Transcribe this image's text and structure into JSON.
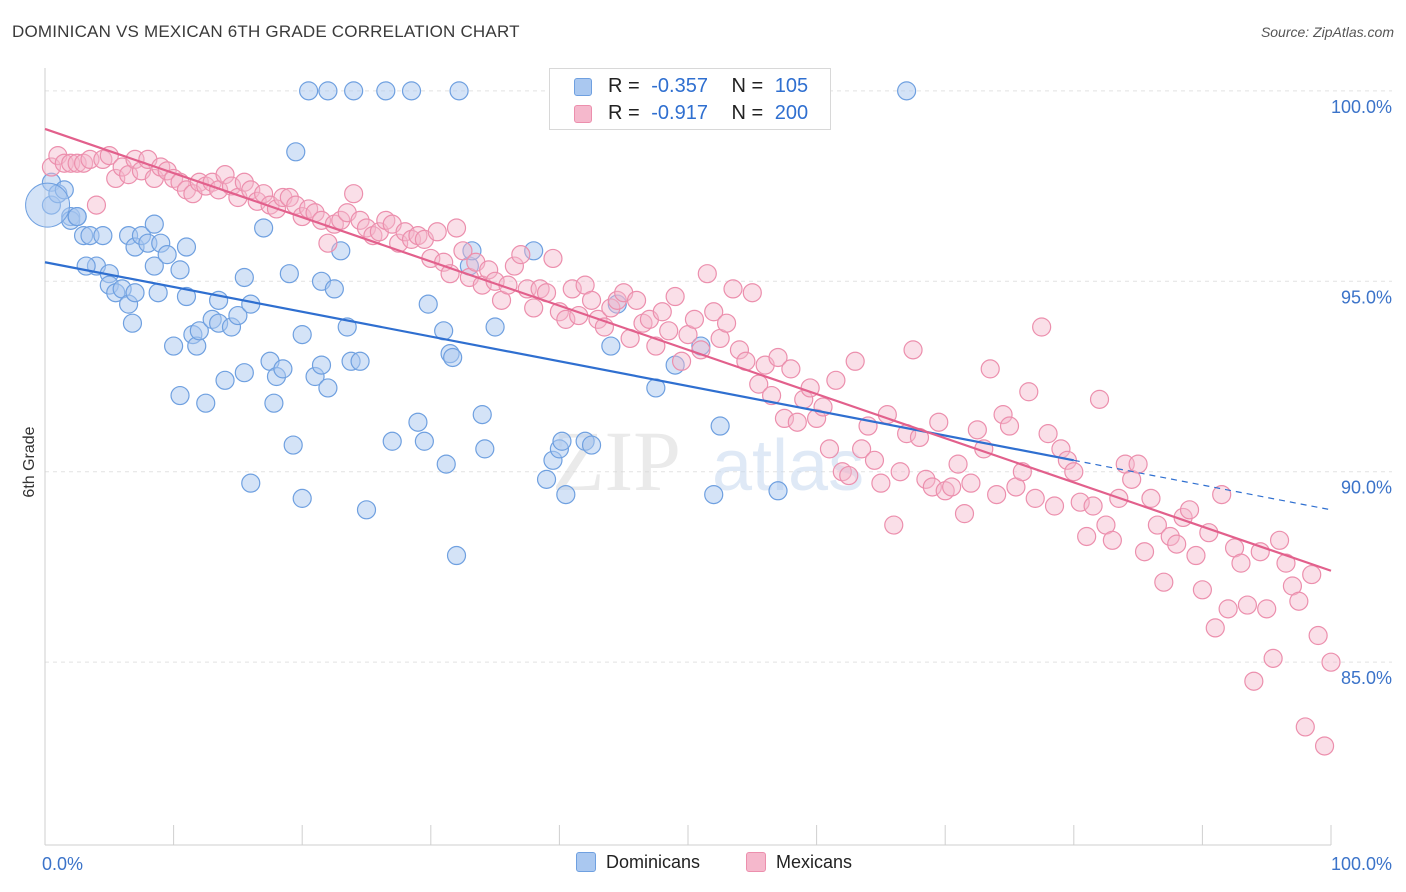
{
  "header": {
    "title": "DOMINICAN VS MEXICAN 6TH GRADE CORRELATION CHART",
    "source": "Source: ZipAtlas.com"
  },
  "legend": {
    "rows": [
      {
        "r_label": "R =",
        "r_value": "-0.357",
        "n_label": "N =",
        "n_value": "105"
      },
      {
        "r_label": "R =",
        "r_value": "-0.917",
        "n_label": "N =",
        "n_value": "200"
      }
    ],
    "bottom": [
      "Dominicans",
      "Mexicans"
    ]
  },
  "watermark": {
    "zip": "ZIP",
    "atlas": "atlas"
  },
  "colors": {
    "dominican_fill": "#aac8f0",
    "dominican_stroke": "#6fa0e0",
    "dominican_line": "#2f6fd0",
    "mexican_fill": "#f5b8cc",
    "mexican_stroke": "#ec8fad",
    "mexican_line": "#e2608c",
    "axis_label": "#3b73c9",
    "grid": "#e2e2e2"
  },
  "chart_data": {
    "type": "scatter",
    "xlabel": "",
    "ylabel": "6th Grade",
    "xlim": [
      0,
      100
    ],
    "ylim": [
      80.5,
      100.5
    ],
    "x_tick_labels": [
      "0.0%",
      "100.0%"
    ],
    "y_ticks": [
      85,
      90,
      95,
      100
    ],
    "y_tick_labels": [
      "85.0%",
      "90.0%",
      "95.0%",
      "100.0%"
    ],
    "grid": "horizontal dashed",
    "legend_position": "top-center",
    "series": [
      {
        "name": "Dominicans",
        "r": -0.357,
        "n": 105,
        "trend": {
          "x0": 0,
          "y0": 95.5,
          "x1": 80,
          "y1": 90.3,
          "dash_to_x": 100,
          "dash_to_y": 89.0
        },
        "points": [
          [
            0.5,
            97.0
          ],
          [
            0.5,
            97.6
          ],
          [
            1,
            97.3
          ],
          [
            1.5,
            97.4
          ],
          [
            2,
            96.7
          ],
          [
            2,
            96.6
          ],
          [
            2.5,
            96.7
          ],
          [
            2.5,
            96.7
          ],
          [
            3,
            96.2
          ],
          [
            3.5,
            96.2
          ],
          [
            4,
            95.4
          ],
          [
            4.5,
            96.2
          ],
          [
            5,
            95.2
          ],
          [
            5,
            94.9
          ],
          [
            5.5,
            94.7
          ],
          [
            6,
            94.8
          ],
          [
            6.5,
            96.2
          ],
          [
            6.5,
            94.4
          ],
          [
            7,
            94.7
          ],
          [
            7,
            95.9
          ],
          [
            7.5,
            96.2
          ],
          [
            8,
            96.0
          ],
          [
            8.5,
            95.4
          ],
          [
            8.5,
            96.5
          ],
          [
            8.8,
            94.7
          ],
          [
            9,
            96.0
          ],
          [
            9.5,
            95.7
          ],
          [
            10,
            93.3
          ],
          [
            10.5,
            95.3
          ],
          [
            10.5,
            92.0
          ],
          [
            11,
            95.9
          ],
          [
            11,
            94.6
          ],
          [
            11.5,
            93.6
          ],
          [
            11.8,
            93.3
          ],
          [
            12,
            93.7
          ],
          [
            12.5,
            91.8
          ],
          [
            13,
            94.0
          ],
          [
            13.5,
            93.9
          ],
          [
            13.5,
            94.5
          ],
          [
            14,
            92.4
          ],
          [
            14.5,
            93.8
          ],
          [
            15,
            94.1
          ],
          [
            15.5,
            92.6
          ],
          [
            15.5,
            95.1
          ],
          [
            16,
            94.4
          ],
          [
            16,
            89.7
          ],
          [
            17,
            96.4
          ],
          [
            17.5,
            92.9
          ],
          [
            17.8,
            91.8
          ],
          [
            18,
            92.5
          ],
          [
            18.5,
            92.7
          ],
          [
            19,
            95.2
          ],
          [
            19.3,
            90.7
          ],
          [
            19.5,
            98.4
          ],
          [
            20,
            93.6
          ],
          [
            20,
            89.3
          ],
          [
            20.5,
            100.0
          ],
          [
            21,
            92.5
          ],
          [
            21.5,
            92.8
          ],
          [
            21.5,
            95.0
          ],
          [
            22,
            92.2
          ],
          [
            22,
            100.0
          ],
          [
            22.5,
            94.8
          ],
          [
            23,
            95.8
          ],
          [
            23.5,
            93.8
          ],
          [
            23.8,
            92.9
          ],
          [
            24,
            100.0
          ],
          [
            24.5,
            92.9
          ],
          [
            25,
            89.0
          ],
          [
            26.5,
            100.0
          ],
          [
            27,
            90.8
          ],
          [
            28.5,
            100.0
          ],
          [
            29,
            91.3
          ],
          [
            29.5,
            90.8
          ],
          [
            29.8,
            94.4
          ],
          [
            31,
            93.7
          ],
          [
            31.2,
            90.2
          ],
          [
            31.5,
            93.1
          ],
          [
            31.7,
            93.0
          ],
          [
            32,
            87.8
          ],
          [
            32.2,
            100.0
          ],
          [
            33,
            95.4
          ],
          [
            33.2,
            95.8
          ],
          [
            34,
            91.5
          ],
          [
            34.2,
            90.6
          ],
          [
            35,
            93.8
          ],
          [
            38,
            95.8
          ],
          [
            39,
            89.8
          ],
          [
            39.5,
            90.3
          ],
          [
            40,
            90.6
          ],
          [
            40.2,
            90.8
          ],
          [
            40.5,
            89.4
          ],
          [
            42,
            90.8
          ],
          [
            42.5,
            90.7
          ],
          [
            44,
            93.3
          ],
          [
            44.5,
            94.4
          ],
          [
            47.5,
            92.2
          ],
          [
            49,
            92.8
          ],
          [
            51,
            93.3
          ],
          [
            52,
            89.4
          ],
          [
            52.5,
            91.2
          ],
          [
            57,
            89.5
          ],
          [
            67,
            100.0
          ],
          [
            3.2,
            95.4
          ],
          [
            6.8,
            93.9
          ]
        ]
      },
      {
        "name": "Mexicans",
        "r": -0.917,
        "n": 200,
        "trend": {
          "x0": 0,
          "y0": 99.0,
          "x1": 100,
          "y1": 87.4
        },
        "points": [
          [
            0.5,
            98.0
          ],
          [
            1,
            98.3
          ],
          [
            1.5,
            98.1
          ],
          [
            2,
            98.1
          ],
          [
            2.5,
            98.1
          ],
          [
            3,
            98.1
          ],
          [
            3.5,
            98.2
          ],
          [
            4,
            97.0
          ],
          [
            4.5,
            98.2
          ],
          [
            5,
            98.3
          ],
          [
            5.5,
            97.7
          ],
          [
            6,
            98.0
          ],
          [
            6.5,
            97.8
          ],
          [
            7,
            98.2
          ],
          [
            7.5,
            97.9
          ],
          [
            8,
            98.2
          ],
          [
            8.5,
            97.7
          ],
          [
            9,
            98.0
          ],
          [
            9.5,
            97.9
          ],
          [
            10,
            97.7
          ],
          [
            10.5,
            97.6
          ],
          [
            11,
            97.4
          ],
          [
            11.5,
            97.3
          ],
          [
            12,
            97.6
          ],
          [
            12.5,
            97.5
          ],
          [
            13,
            97.6
          ],
          [
            13.5,
            97.4
          ],
          [
            14,
            97.8
          ],
          [
            14.5,
            97.5
          ],
          [
            15,
            97.2
          ],
          [
            15.5,
            97.6
          ],
          [
            16,
            97.4
          ],
          [
            16.5,
            97.1
          ],
          [
            17,
            97.3
          ],
          [
            17.5,
            97.0
          ],
          [
            18,
            96.9
          ],
          [
            18.5,
            97.2
          ],
          [
            19,
            97.2
          ],
          [
            19.5,
            97.0
          ],
          [
            20,
            96.7
          ],
          [
            20.5,
            96.9
          ],
          [
            21,
            96.8
          ],
          [
            21.5,
            96.6
          ],
          [
            22,
            96.0
          ],
          [
            22.5,
            96.5
          ],
          [
            23,
            96.6
          ],
          [
            23.5,
            96.8
          ],
          [
            24,
            97.3
          ],
          [
            24.5,
            96.6
          ],
          [
            25,
            96.4
          ],
          [
            25.5,
            96.2
          ],
          [
            26,
            96.3
          ],
          [
            26.5,
            96.6
          ],
          [
            27,
            96.5
          ],
          [
            27.5,
            96.0
          ],
          [
            28,
            96.3
          ],
          [
            28.5,
            96.1
          ],
          [
            29,
            96.2
          ],
          [
            29.5,
            96.1
          ],
          [
            30,
            95.6
          ],
          [
            30.5,
            96.3
          ],
          [
            31,
            95.5
          ],
          [
            31.5,
            95.2
          ],
          [
            32,
            96.4
          ],
          [
            32.5,
            95.8
          ],
          [
            33,
            95.1
          ],
          [
            33.5,
            95.5
          ],
          [
            34,
            94.9
          ],
          [
            34.5,
            95.3
          ],
          [
            35,
            95.0
          ],
          [
            35.5,
            94.5
          ],
          [
            36,
            94.9
          ],
          [
            36.5,
            95.4
          ],
          [
            37,
            95.7
          ],
          [
            37.5,
            94.8
          ],
          [
            38,
            94.3
          ],
          [
            38.5,
            94.8
          ],
          [
            39,
            94.7
          ],
          [
            39.5,
            95.6
          ],
          [
            40,
            94.2
          ],
          [
            40.5,
            94.0
          ],
          [
            41,
            94.8
          ],
          [
            41.5,
            94.1
          ],
          [
            42,
            94.9
          ],
          [
            42.5,
            94.5
          ],
          [
            43,
            94.0
          ],
          [
            43.5,
            93.8
          ],
          [
            44,
            94.3
          ],
          [
            44.5,
            94.5
          ],
          [
            45,
            94.7
          ],
          [
            45.5,
            93.5
          ],
          [
            46,
            94.5
          ],
          [
            46.5,
            93.9
          ],
          [
            47,
            94.0
          ],
          [
            47.5,
            93.3
          ],
          [
            48,
            94.2
          ],
          [
            48.5,
            93.7
          ],
          [
            49,
            94.6
          ],
          [
            49.5,
            92.9
          ],
          [
            50,
            93.6
          ],
          [
            50.5,
            94.0
          ],
          [
            51,
            93.2
          ],
          [
            51.5,
            95.2
          ],
          [
            52,
            94.2
          ],
          [
            52.5,
            93.5
          ],
          [
            53,
            93.9
          ],
          [
            53.5,
            94.8
          ],
          [
            54,
            93.2
          ],
          [
            54.5,
            92.9
          ],
          [
            55,
            94.7
          ],
          [
            55.5,
            92.3
          ],
          [
            56,
            92.8
          ],
          [
            56.5,
            92.0
          ],
          [
            57,
            93.0
          ],
          [
            57.5,
            91.4
          ],
          [
            58,
            92.7
          ],
          [
            58.5,
            91.3
          ],
          [
            59,
            91.9
          ],
          [
            59.5,
            92.2
          ],
          [
            60,
            91.4
          ],
          [
            60.5,
            91.7
          ],
          [
            61,
            90.6
          ],
          [
            61.5,
            92.4
          ],
          [
            62,
            90.0
          ],
          [
            62.5,
            89.9
          ],
          [
            63,
            92.9
          ],
          [
            63.5,
            90.6
          ],
          [
            64,
            91.2
          ],
          [
            64.5,
            90.3
          ],
          [
            65,
            89.7
          ],
          [
            65.5,
            91.5
          ],
          [
            66,
            88.6
          ],
          [
            66.5,
            90.0
          ],
          [
            67,
            91.0
          ],
          [
            67.5,
            93.2
          ],
          [
            68,
            90.9
          ],
          [
            68.5,
            89.8
          ],
          [
            69,
            89.6
          ],
          [
            69.5,
            91.3
          ],
          [
            70,
            89.5
          ],
          [
            70.5,
            89.6
          ],
          [
            71,
            90.2
          ],
          [
            71.5,
            88.9
          ],
          [
            72,
            89.7
          ],
          [
            72.5,
            91.1
          ],
          [
            73,
            90.6
          ],
          [
            73.5,
            92.7
          ],
          [
            74,
            89.4
          ],
          [
            74.5,
            91.5
          ],
          [
            75,
            91.2
          ],
          [
            75.5,
            89.6
          ],
          [
            76,
            90.0
          ],
          [
            76.5,
            92.1
          ],
          [
            77,
            89.3
          ],
          [
            77.5,
            93.8
          ],
          [
            78,
            91.0
          ],
          [
            78.5,
            89.1
          ],
          [
            79,
            90.6
          ],
          [
            79.5,
            90.3
          ],
          [
            80,
            90.0
          ],
          [
            80.5,
            89.2
          ],
          [
            81,
            88.3
          ],
          [
            81.5,
            89.1
          ],
          [
            82,
            91.9
          ],
          [
            82.5,
            88.6
          ],
          [
            83,
            88.2
          ],
          [
            83.5,
            89.3
          ],
          [
            84,
            90.2
          ],
          [
            84.5,
            89.8
          ],
          [
            85,
            90.2
          ],
          [
            85.5,
            87.9
          ],
          [
            86,
            89.3
          ],
          [
            86.5,
            88.6
          ],
          [
            87,
            87.1
          ],
          [
            87.5,
            88.3
          ],
          [
            88,
            88.1
          ],
          [
            88.5,
            88.8
          ],
          [
            89,
            89.0
          ],
          [
            89.5,
            87.8
          ],
          [
            90,
            86.9
          ],
          [
            90.5,
            88.4
          ],
          [
            91,
            85.9
          ],
          [
            91.5,
            89.4
          ],
          [
            92,
            86.4
          ],
          [
            92.5,
            88.0
          ],
          [
            93,
            87.6
          ],
          [
            93.5,
            86.5
          ],
          [
            94,
            84.5
          ],
          [
            94.5,
            87.9
          ],
          [
            95,
            86.4
          ],
          [
            95.5,
            85.1
          ],
          [
            96,
            88.2
          ],
          [
            96.5,
            87.6
          ],
          [
            97,
            87.0
          ],
          [
            97.5,
            86.6
          ],
          [
            98,
            83.3
          ],
          [
            98.5,
            87.3
          ],
          [
            99,
            85.7
          ],
          [
            99.5,
            82.8
          ],
          [
            100,
            85.0
          ]
        ]
      }
    ]
  }
}
